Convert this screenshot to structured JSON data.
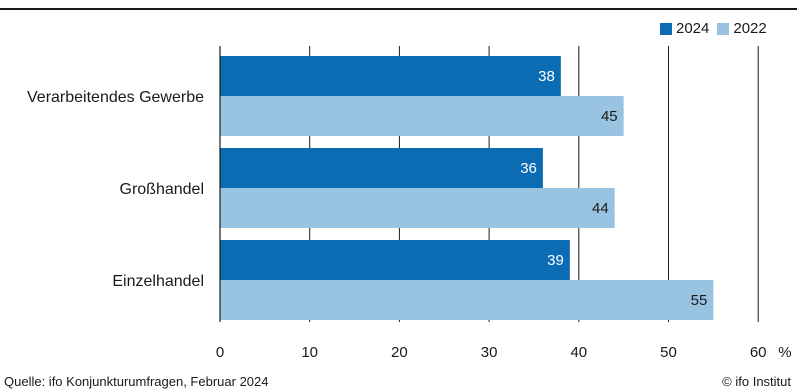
{
  "legend": [
    {
      "label": "2024",
      "color": "#0b6cb3"
    },
    {
      "label": "2022",
      "color": "#98c4e2"
    }
  ],
  "footer": {
    "source": "Quelle: ifo Konjunkturumfragen, Februar 2024",
    "copyright": "© ifo Institut"
  },
  "chart_data": {
    "type": "bar",
    "orientation": "horizontal",
    "categories": [
      "Verarbeitendes Gewerbe",
      "Großhandel",
      "Einzelhandel"
    ],
    "series": [
      {
        "name": "2024",
        "values": [
          38,
          36,
          39
        ],
        "color": "#0b6cb3",
        "label_color": "#ffffff"
      },
      {
        "name": "2022",
        "values": [
          45,
          44,
          55
        ],
        "color": "#98c4e2",
        "label_color": "#1a1a1a"
      }
    ],
    "xlim": [
      0,
      60
    ],
    "xticks": [
      0,
      10,
      20,
      30,
      40,
      50,
      60
    ],
    "unit": "%",
    "grid": "vertical"
  }
}
